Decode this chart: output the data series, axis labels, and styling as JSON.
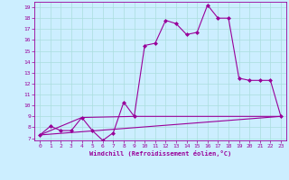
{
  "xlabel": "Windchill (Refroidissement éolien,°C)",
  "background_color": "#cceeff",
  "line_color": "#990099",
  "xlim": [
    -0.5,
    23.5
  ],
  "ylim": [
    6.8,
    19.5
  ],
  "x_ticks": [
    0,
    1,
    2,
    3,
    4,
    5,
    6,
    7,
    8,
    9,
    10,
    11,
    12,
    13,
    14,
    15,
    16,
    17,
    18,
    19,
    20,
    21,
    22,
    23
  ],
  "y_ticks": [
    7,
    8,
    9,
    10,
    11,
    12,
    13,
    14,
    15,
    16,
    17,
    18,
    19
  ],
  "main_line_x": [
    0,
    1,
    2,
    3,
    4,
    5,
    6,
    7,
    8,
    9,
    10,
    11,
    12,
    13,
    14,
    15,
    16,
    17,
    18,
    19,
    20,
    21,
    22,
    23
  ],
  "main_line_y": [
    7.3,
    8.1,
    7.7,
    7.7,
    8.9,
    7.7,
    6.8,
    7.5,
    10.3,
    9.0,
    15.5,
    15.7,
    17.8,
    17.5,
    16.5,
    16.7,
    19.2,
    18.0,
    18.0,
    12.5,
    12.3,
    12.3,
    12.3,
    9.0
  ],
  "line2_x": [
    0,
    23
  ],
  "line2_y": [
    7.3,
    9.0
  ],
  "line3_x": [
    0,
    4,
    9,
    23
  ],
  "line3_y": [
    7.3,
    8.9,
    9.0,
    9.0
  ]
}
